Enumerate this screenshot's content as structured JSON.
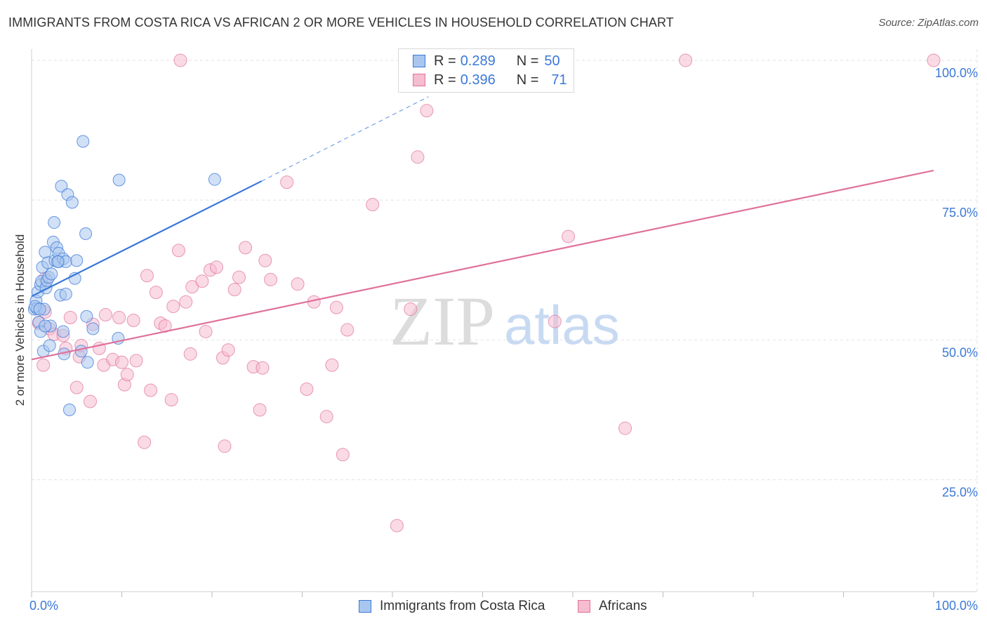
{
  "header": {
    "title": "IMMIGRANTS FROM COSTA RICA VS AFRICAN 2 OR MORE VEHICLES IN HOUSEHOLD CORRELATION CHART",
    "source": "Source: ZipAtlas.com"
  },
  "watermark": {
    "zip": "ZIP",
    "atlas": "atlas"
  },
  "legend": {
    "series1": {
      "r_label": "R =",
      "r_value": "0.289",
      "n_label": "N =",
      "n_value": "50"
    },
    "series2": {
      "r_label": "R =",
      "r_value": "0.396",
      "n_label": "N =",
      "n_value": "71"
    }
  },
  "colors": {
    "blue": "#3b78d8",
    "blue_fill": "#a9c6ef",
    "pink": "#e0719b",
    "pink_fill": "#f6bccf",
    "grid": "#e2e2e2",
    "axis_label": "#3b78d8"
  },
  "chart_data": {
    "type": "scatter",
    "title": "IMMIGRANTS FROM COSTA RICA VS AFRICAN 2 OR MORE VEHICLES IN HOUSEHOLD CORRELATION CHART",
    "xlabel": "",
    "ylabel": "2 or more Vehicles in Household",
    "xlim": [
      0,
      100
    ],
    "ylim": [
      5,
      102
    ],
    "x_tick_labels": [
      "0.0%",
      "100.0%"
    ],
    "y_ticks": [
      25,
      50,
      75,
      100
    ],
    "y_tick_labels": [
      "25.0%",
      "50.0%",
      "75.0%",
      "100.0%"
    ],
    "legend_position": "top-center",
    "series": [
      {
        "name": "Immigrants from Costa Rica",
        "r": 0.289,
        "n": 50,
        "trend": {
          "x0": 0,
          "y0": 57.8,
          "x1": 25.5,
          "y1": 78.4,
          "dash_x1": 44,
          "dash_y1": 93.5
        },
        "points": [
          [
            0.3,
            55.5
          ],
          [
            0.5,
            57
          ],
          [
            0.6,
            55.6
          ],
          [
            0.7,
            58.6
          ],
          [
            0.8,
            53.2
          ],
          [
            1.0,
            59.9
          ],
          [
            1.0,
            51.5
          ],
          [
            1.1,
            60.5
          ],
          [
            1.2,
            63
          ],
          [
            1.3,
            48
          ],
          [
            1.4,
            55.5
          ],
          [
            1.5,
            65.7
          ],
          [
            1.6,
            59.3
          ],
          [
            1.7,
            60.6
          ],
          [
            1.8,
            63.8
          ],
          [
            1.9,
            61.2
          ],
          [
            2.0,
            49
          ],
          [
            2.1,
            52.5
          ],
          [
            2.2,
            61.8
          ],
          [
            2.4,
            67.5
          ],
          [
            2.5,
            71
          ],
          [
            2.6,
            64.2
          ],
          [
            2.8,
            66.5
          ],
          [
            3.0,
            65.5
          ],
          [
            3.0,
            64
          ],
          [
            3.2,
            58
          ],
          [
            3.3,
            77.5
          ],
          [
            3.5,
            64.5
          ],
          [
            3.5,
            51.5
          ],
          [
            3.6,
            47.5
          ],
          [
            3.8,
            64
          ],
          [
            3.8,
            58.2
          ],
          [
            4.0,
            76
          ],
          [
            4.2,
            37.5
          ],
          [
            4.5,
            74.6
          ],
          [
            4.8,
            61
          ],
          [
            5.0,
            64.2
          ],
          [
            5.5,
            48
          ],
          [
            5.7,
            85.5
          ],
          [
            6.0,
            69
          ],
          [
            6.1,
            54.2
          ],
          [
            6.2,
            46
          ],
          [
            6.8,
            52
          ],
          [
            9.6,
            50.3
          ],
          [
            9.7,
            78.6
          ],
          [
            20.3,
            78.7
          ],
          [
            0.4,
            56
          ],
          [
            1.5,
            52.5
          ],
          [
            2.9,
            64
          ],
          [
            0.9,
            55.5
          ]
        ]
      },
      {
        "name": "Africans",
        "r": 0.396,
        "n": 71,
        "trend": {
          "x0": 0,
          "y0": 46.5,
          "x1": 100,
          "y1": 80.3
        },
        "points": [
          [
            0.8,
            53
          ],
          [
            1.3,
            45.5
          ],
          [
            1.5,
            61
          ],
          [
            1.5,
            55
          ],
          [
            2.0,
            52
          ],
          [
            2.5,
            51
          ],
          [
            3.5,
            50.8
          ],
          [
            3.8,
            48.5
          ],
          [
            4.3,
            54
          ],
          [
            5.0,
            41.5
          ],
          [
            5.3,
            47
          ],
          [
            5.5,
            49
          ],
          [
            6.5,
            39
          ],
          [
            6.8,
            52.8
          ],
          [
            7.5,
            48.5
          ],
          [
            8.0,
            45.5
          ],
          [
            8.2,
            54.5
          ],
          [
            9.0,
            46.5
          ],
          [
            9.7,
            54
          ],
          [
            10.0,
            46
          ],
          [
            10.3,
            42
          ],
          [
            10.6,
            43.8
          ],
          [
            11.3,
            53.5
          ],
          [
            11.6,
            46.3
          ],
          [
            12.5,
            31.7
          ],
          [
            12.8,
            61.5
          ],
          [
            13.2,
            41
          ],
          [
            13.8,
            58.5
          ],
          [
            14.3,
            53
          ],
          [
            14.8,
            52.5
          ],
          [
            15.5,
            39.3
          ],
          [
            15.7,
            56
          ],
          [
            16.3,
            66
          ],
          [
            16.5,
            100
          ],
          [
            17.1,
            56.8
          ],
          [
            17.6,
            47.5
          ],
          [
            17.8,
            59.5
          ],
          [
            18.9,
            60.5
          ],
          [
            19.3,
            51.5
          ],
          [
            19.8,
            62.5
          ],
          [
            20.5,
            63
          ],
          [
            21.2,
            46.8
          ],
          [
            21.4,
            31
          ],
          [
            21.8,
            48.2
          ],
          [
            22.5,
            59
          ],
          [
            23.0,
            61.2
          ],
          [
            23.7,
            66.5
          ],
          [
            24.6,
            45.2
          ],
          [
            25.3,
            37.5
          ],
          [
            25.6,
            45
          ],
          [
            25.9,
            64.2
          ],
          [
            26.5,
            60.8
          ],
          [
            28.3,
            78.2
          ],
          [
            29.5,
            60
          ],
          [
            30.5,
            41.2
          ],
          [
            31.3,
            56.8
          ],
          [
            32.7,
            36.3
          ],
          [
            33.3,
            45.5
          ],
          [
            33.8,
            55.8
          ],
          [
            34.5,
            29.5
          ],
          [
            35.0,
            51.8
          ],
          [
            37.8,
            74.2
          ],
          [
            40.5,
            16.8
          ],
          [
            42.0,
            55.5
          ],
          [
            42.8,
            82.7
          ],
          [
            43.8,
            91
          ],
          [
            58.0,
            53.3
          ],
          [
            59.5,
            68.5
          ],
          [
            65.8,
            34.2
          ],
          [
            72.5,
            100
          ],
          [
            100,
            100
          ]
        ]
      }
    ]
  },
  "bottom_legend": {
    "item1": "Immigrants from Costa Rica",
    "item2": "Africans"
  }
}
